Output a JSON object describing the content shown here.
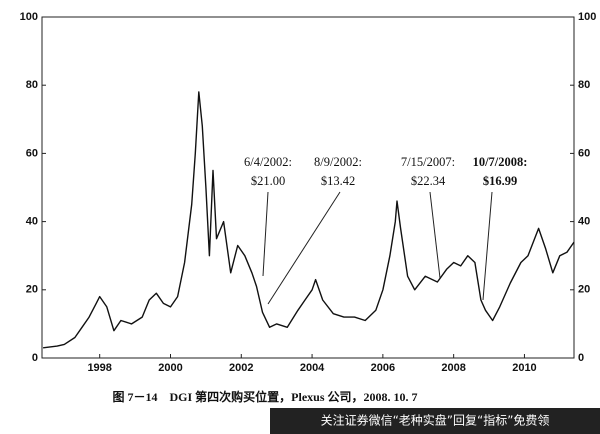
{
  "chart_data": {
    "type": "line",
    "x": [
      1996.4,
      1996.8,
      1997.0,
      1997.3,
      1997.5,
      1997.7,
      1997.9,
      1998.0,
      1998.2,
      1998.4,
      1998.6,
      1998.9,
      1999.2,
      1999.4,
      1999.6,
      1999.8,
      2000.0,
      2000.2,
      2000.4,
      2000.6,
      2000.7,
      2000.8,
      2000.9,
      2001.0,
      2001.1,
      2001.2,
      2001.3,
      2001.5,
      2001.7,
      2001.9,
      2002.1,
      2002.3,
      2002.43,
      2002.6,
      2002.8,
      2003.0,
      2003.3,
      2003.6,
      2003.8,
      2004.0,
      2004.1,
      2004.3,
      2004.6,
      2004.9,
      2005.2,
      2005.5,
      2005.8,
      2006.0,
      2006.2,
      2006.35,
      2006.4,
      2006.5,
      2006.7,
      2006.9,
      2007.2,
      2007.54,
      2007.8,
      2008.0,
      2008.2,
      2008.4,
      2008.6,
      2008.77,
      2008.9,
      2009.1,
      2009.3,
      2009.6,
      2009.9,
      2010.1,
      2010.4,
      2010.6,
      2010.8,
      2011.0,
      2011.2,
      2011.4
    ],
    "series": [
      {
        "color": "#111111",
        "values": [
          3,
          3.5,
          4,
          6,
          9,
          12,
          16,
          18,
          15,
          8,
          11,
          10,
          12,
          17,
          19,
          16,
          15,
          18,
          28,
          45,
          60,
          78,
          68,
          50,
          30,
          55,
          35,
          40,
          25,
          33,
          30,
          25,
          21,
          13.4,
          9,
          10,
          9,
          14,
          17,
          20,
          23,
          17,
          13,
          12,
          12,
          11,
          14,
          20,
          30,
          40,
          46,
          38,
          24,
          20,
          24,
          22.3,
          26,
          28,
          27,
          30,
          28,
          17,
          14,
          11,
          15,
          22,
          28,
          30,
          38,
          32,
          25,
          30,
          31,
          34
        ]
      }
    ],
    "xlim": [
      1996.37,
      2011.4
    ],
    "xticks": [
      1998,
      2000,
      2002,
      2004,
      2006,
      2008,
      2010
    ],
    "ylim": [
      0,
      100
    ],
    "yticks": [
      0,
      20,
      40,
      60,
      80,
      100
    ],
    "y2lim": [
      0,
      100
    ],
    "y2ticks": [
      0,
      20,
      40,
      60,
      80,
      100
    ],
    "annotations": [
      {
        "lines": [
          "6/4/2002:",
          "$21.00"
        ]
      },
      {
        "lines": [
          "8/9/2002:",
          "$13.42"
        ]
      },
      {
        "lines": [
          "7/15/2007:",
          "$22.34"
        ]
      },
      {
        "lines": [
          "10/7/2008:",
          "$16.99"
        ]
      }
    ],
    "caption": "图 7－14　DGI 第四次购买位置，Plexus 公司，2008. 10. 7"
  },
  "footer": {
    "text": "关注证券微信“老种实盘”回复“指标”免费领"
  }
}
